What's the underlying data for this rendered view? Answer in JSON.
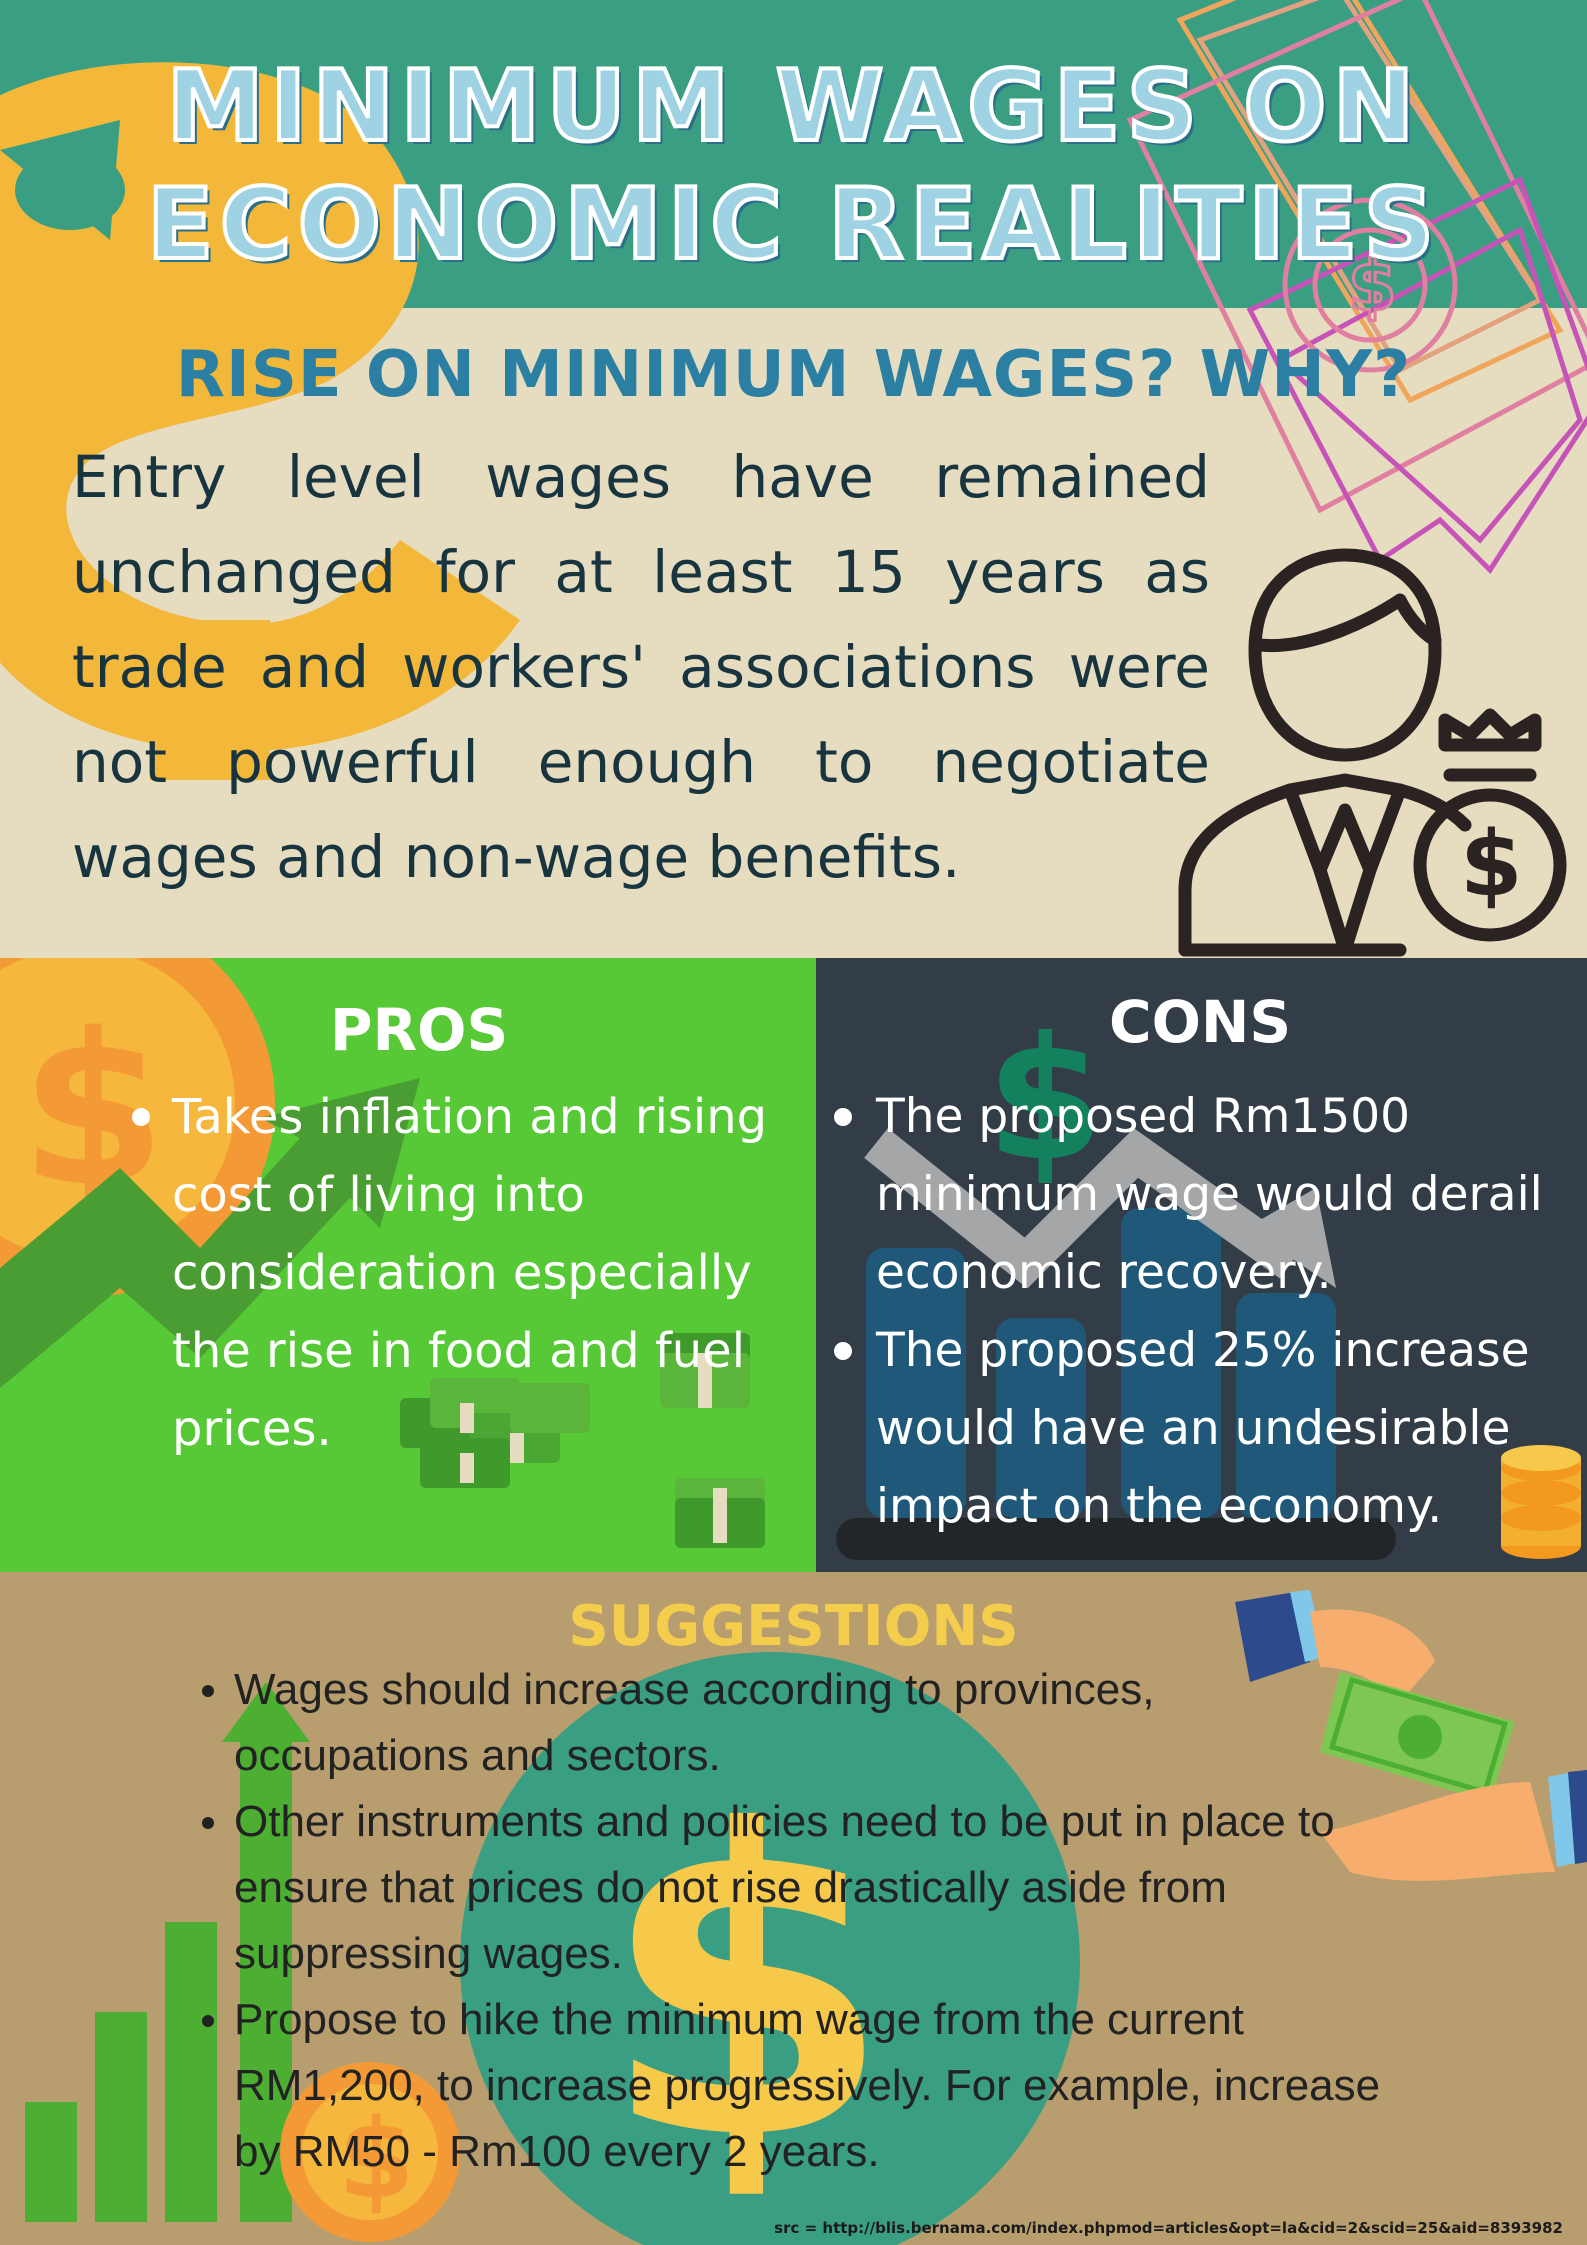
{
  "title": {
    "line1": "MINIMUM WAGES ON",
    "line2": "ECONOMIC REALITIES"
  },
  "intro": {
    "heading": "RISE ON MINIMUM WAGES? WHY?",
    "body": "Entry level wages have remained unchanged for at least 15 years as trade and workers' associations were not powerful enough to negotiate wages and non-wage benefits."
  },
  "pros": {
    "heading": "PROS",
    "items": [
      "Takes inflation and rising cost of living into consideration especially the rise in food and fuel prices."
    ]
  },
  "cons": {
    "heading": "CONS",
    "items": [
      " The proposed Rm1500 minimum wage would derail economic recovery.",
      "The proposed 25% increase would have an undesirable impact on the economy."
    ]
  },
  "suggestions": {
    "heading": "SUGGESTIONS",
    "items": [
      "Wages should increase according to provinces, occupations and sectors.",
      "Other instruments and policies need to be put in place to ensure that prices do not rise drastically aside from suppressing wages.",
      "Propose to hike the minimum wage from the current RM1,200, to increase progressively. For example, increase by RM50 - Rm100 every 2 years."
    ]
  },
  "source": "src = http://blis.bernama.com/index.phpmod=articles&opt=la&cid=2&scid=25&aid=8393982",
  "icons": {
    "dollar": "$"
  },
  "colors": {
    "teal": "#3a9e82",
    "cream": "#e6dcc0",
    "pros_green": "#57c936",
    "cons_dark": "#333d47",
    "suggestions_tan": "#b89e6f",
    "title_blue": "#9fd2e3",
    "heading_blue": "#2a7fa3",
    "suggestions_yellow": "#f3cd4b"
  }
}
